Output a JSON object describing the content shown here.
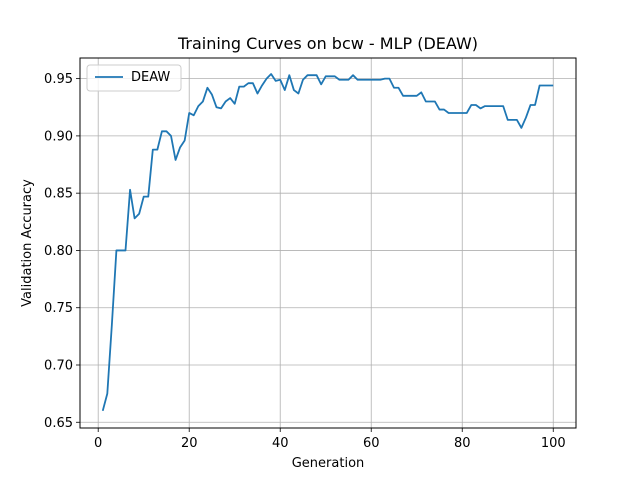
{
  "chart_data": {
    "type": "line",
    "title": "Training Curves on bcw - MLP (DEAW)",
    "xlabel": "Generation",
    "ylabel": "Validation Accuracy",
    "xlim": [
      -4,
      105
    ],
    "ylim": [
      0.645,
      0.968
    ],
    "x_ticks": [
      0,
      20,
      40,
      60,
      80,
      100
    ],
    "y_ticks": [
      0.65,
      0.7,
      0.75,
      0.8,
      0.85,
      0.9,
      0.95
    ],
    "y_tick_labels": [
      "0.65",
      "0.70",
      "0.75",
      "0.80",
      "0.85",
      "0.90",
      "0.95"
    ],
    "grid": true,
    "legend_position": "upper-left",
    "series": [
      {
        "name": "DEAW",
        "color": "#1f77b4",
        "x": [
          1,
          2,
          3,
          4,
          5,
          6,
          7,
          8,
          9,
          10,
          11,
          12,
          13,
          14,
          15,
          16,
          17,
          18,
          19,
          20,
          21,
          22,
          23,
          24,
          25,
          26,
          27,
          28,
          29,
          30,
          31,
          32,
          33,
          34,
          35,
          36,
          37,
          38,
          39,
          40,
          41,
          42,
          43,
          44,
          45,
          46,
          47,
          48,
          49,
          50,
          51,
          52,
          53,
          54,
          55,
          56,
          57,
          58,
          59,
          60,
          61,
          62,
          63,
          64,
          65,
          66,
          67,
          68,
          69,
          70,
          71,
          72,
          73,
          74,
          75,
          76,
          77,
          78,
          79,
          80,
          81,
          82,
          83,
          84,
          85,
          86,
          87,
          88,
          89,
          90,
          91,
          92,
          93,
          94,
          95,
          96,
          97,
          98,
          99,
          100
        ],
        "values": [
          0.66,
          0.675,
          0.735,
          0.8,
          0.8,
          0.8,
          0.853,
          0.828,
          0.832,
          0.847,
          0.847,
          0.888,
          0.888,
          0.904,
          0.904,
          0.9,
          0.879,
          0.89,
          0.896,
          0.92,
          0.918,
          0.926,
          0.93,
          0.942,
          0.936,
          0.925,
          0.924,
          0.93,
          0.933,
          0.928,
          0.943,
          0.943,
          0.946,
          0.946,
          0.937,
          0.944,
          0.95,
          0.954,
          0.948,
          0.949,
          0.94,
          0.953,
          0.94,
          0.937,
          0.949,
          0.953,
          0.953,
          0.953,
          0.945,
          0.952,
          0.952,
          0.952,
          0.949,
          0.949,
          0.949,
          0.953,
          0.949,
          0.949,
          0.949,
          0.949,
          0.949,
          0.949,
          0.95,
          0.95,
          0.942,
          0.942,
          0.935,
          0.935,
          0.935,
          0.935,
          0.938,
          0.93,
          0.93,
          0.93,
          0.923,
          0.923,
          0.92,
          0.92,
          0.92,
          0.92,
          0.92,
          0.927,
          0.927,
          0.924,
          0.926,
          0.926,
          0.926,
          0.926,
          0.926,
          0.914,
          0.914,
          0.914,
          0.907,
          0.916,
          0.927,
          0.927,
          0.944,
          0.944,
          0.944,
          0.944
        ]
      }
    ]
  }
}
